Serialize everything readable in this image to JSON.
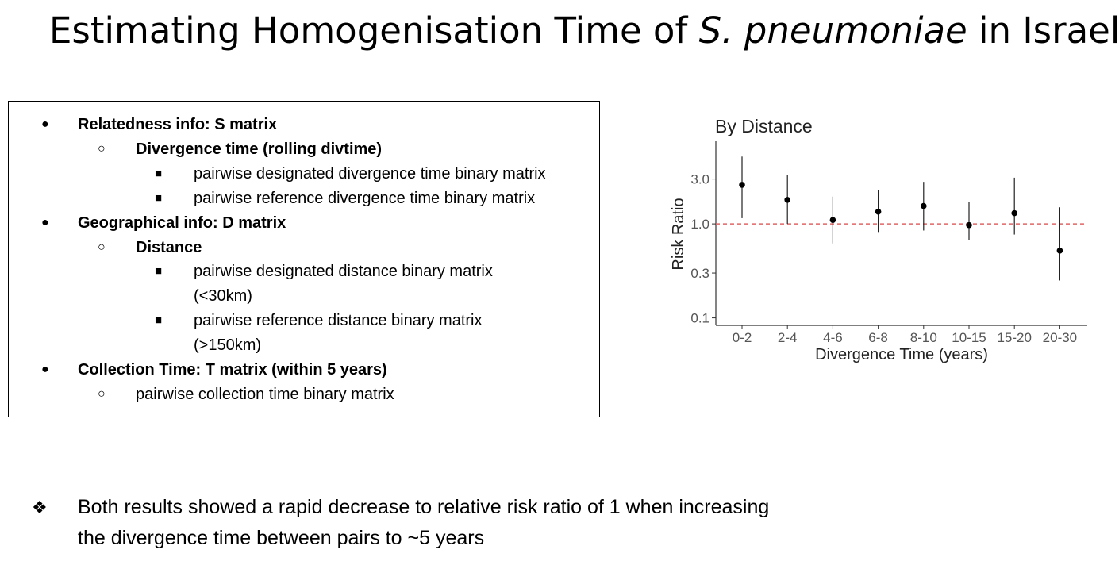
{
  "slide": {
    "title_pre": "Estimating Homogenisation Time of ",
    "title_italic": "S. pneumoniae",
    "title_post": " in Israel"
  },
  "bullets": [
    {
      "level": 1,
      "bold": true,
      "marker": "●",
      "text": "Relatedness info: S matrix"
    },
    {
      "level": 2,
      "bold": true,
      "marker": "○",
      "text": "Divergence time (rolling divtime)"
    },
    {
      "level": 3,
      "bold": false,
      "marker": "■",
      "text": "pairwise designated divergence time binary matrix"
    },
    {
      "level": 3,
      "bold": false,
      "marker": "■",
      "text": "pairwise reference divergence time binary matrix"
    },
    {
      "level": 1,
      "bold": true,
      "marker": "●",
      "text": "Geographical info: D matrix"
    },
    {
      "level": 2,
      "bold": true,
      "marker": "○",
      "text": "Distance"
    },
    {
      "level": 3,
      "bold": false,
      "marker": "■",
      "text": "pairwise designated distance binary matrix"
    },
    {
      "level": 3,
      "bold": false,
      "marker": "",
      "text": "(<30km)"
    },
    {
      "level": 3,
      "bold": false,
      "marker": "■",
      "text": "pairwise reference distance binary matrix"
    },
    {
      "level": 3,
      "bold": false,
      "marker": "",
      "text": "(>150km)"
    },
    {
      "level": 1,
      "bold": true,
      "marker": "●",
      "text": "Collection Time: T matrix (within 5 years)"
    },
    {
      "level": 2,
      "bold": false,
      "marker": "○",
      "text": "pairwise collection time binary matrix"
    }
  ],
  "note": {
    "marker": "❖",
    "text": "Both results showed a rapid decrease to relative risk ratio of 1 when increasing the divergence time between pairs to ~5 years"
  },
  "chart_data": {
    "type": "scatter",
    "title": "By Distance",
    "xlabel": "Divergence Time (years)",
    "ylabel": "Risk Ratio",
    "y_scale": "log",
    "yticks": [
      0.1,
      0.3,
      1.0,
      3.0
    ],
    "ytick_labels": [
      "0.1",
      "0.3",
      "1.0",
      "3.0"
    ],
    "ylim": [
      0.09,
      7
    ],
    "categories": [
      "0-2",
      "2-4",
      "4-6",
      "6-8",
      "8-10",
      "10-15",
      "15-20",
      "20-30"
    ],
    "values": [
      2.6,
      1.8,
      1.1,
      1.35,
      1.55,
      0.97,
      1.3,
      0.52
    ],
    "lower": [
      1.15,
      1.0,
      0.62,
      0.82,
      0.85,
      0.67,
      0.77,
      0.25
    ],
    "upper": [
      5.2,
      3.3,
      1.95,
      2.3,
      2.8,
      1.7,
      3.1,
      1.5
    ],
    "reference_line": 1.0,
    "reference_color": "#e06666",
    "grid": false
  }
}
